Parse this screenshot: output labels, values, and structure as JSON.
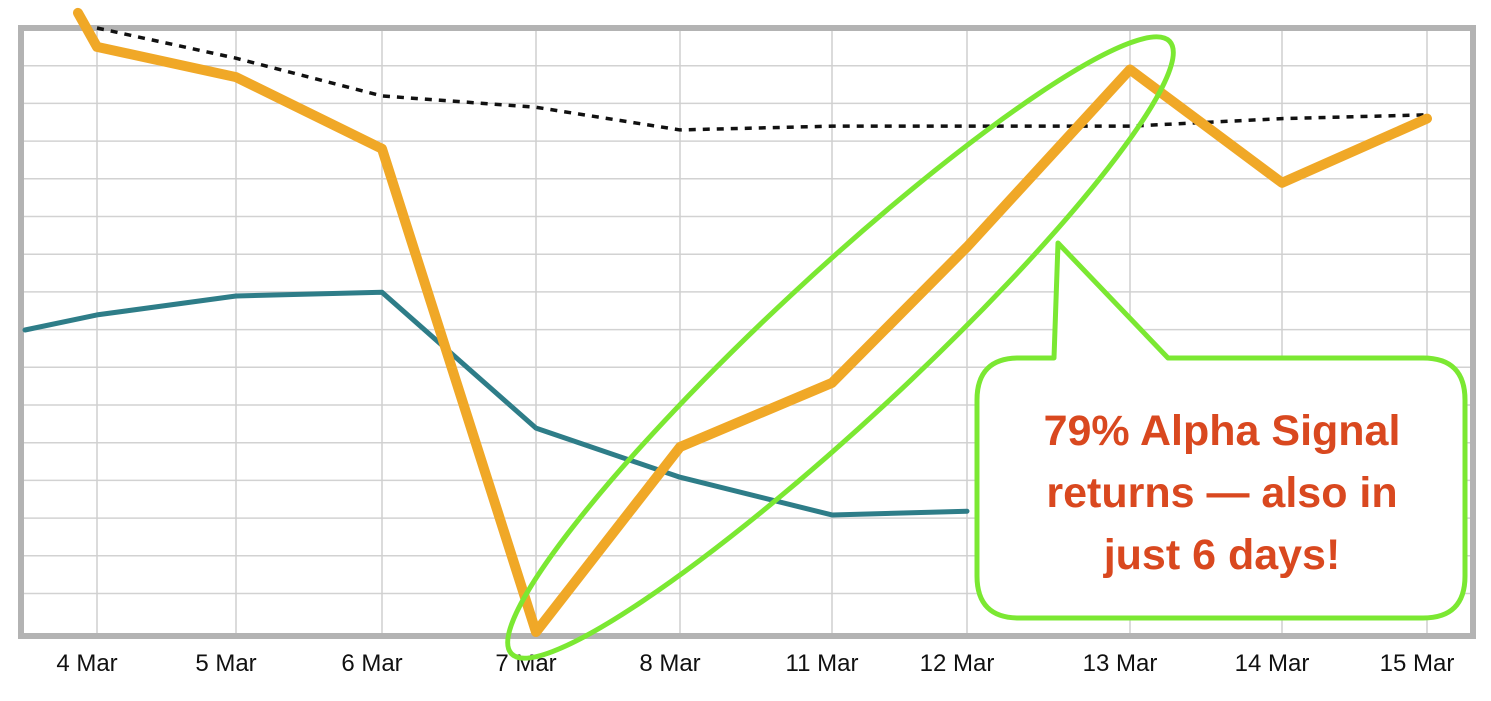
{
  "chart_data": {
    "type": "line",
    "categories": [
      "4 Mar",
      "5 Mar",
      "6 Mar",
      "7 Mar",
      "8 Mar",
      "11 Mar",
      "12 Mar",
      "13 Mar",
      "14 Mar",
      "15 Mar"
    ],
    "x_tick_labels": [
      "4 Mar",
      "5 Mar",
      "6 Mar",
      "7 Mar",
      "8 Mar",
      "11 Mar",
      "12 Mar",
      "13 Mar",
      "14 Mar",
      "15 Mar"
    ],
    "ylim": [
      0,
      16
    ],
    "grid": true,
    "y_tick_labels_visible": false,
    "series": [
      {
        "style": "solid-thick",
        "color": "#f0a827",
        "values": [
          15.5,
          14.7,
          12.8,
          0,
          4.9,
          6.6,
          10.2,
          14.9,
          11.9,
          13.6
        ]
      },
      {
        "style": "solid",
        "color": "#2e7d88",
        "values": [
          8.4,
          8.9,
          9.0,
          5.4,
          4.1,
          3.1,
          3.2,
          null,
          null,
          null
        ]
      },
      {
        "style": "dotted",
        "color": "#111111",
        "values": [
          16.0,
          15.2,
          14.2,
          13.9,
          13.3,
          13.4,
          13.4,
          13.4,
          13.6,
          13.7
        ]
      }
    ],
    "annotations": [
      {
        "type": "ellipse-highlight",
        "color": "#7be832",
        "from_category": "7 Mar",
        "to_category": "13 Mar"
      },
      {
        "type": "callout",
        "color": "#7be832",
        "text_color": "#d9481f",
        "lines": [
          "79% Alpha Signal",
          "returns — also in",
          "just 6 days!"
        ]
      }
    ]
  }
}
